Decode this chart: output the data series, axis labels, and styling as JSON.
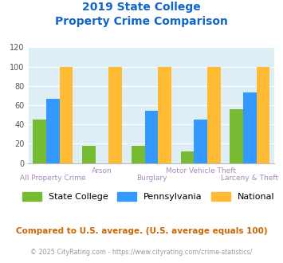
{
  "title_line1": "2019 State College",
  "title_line2": "Property Crime Comparison",
  "categories": [
    "All Property Crime",
    "Arson",
    "Burglary",
    "Motor Vehicle Theft",
    "Larceny & Theft"
  ],
  "state_college": [
    45,
    18,
    18,
    12,
    56
  ],
  "pennsylvania": [
    67,
    0,
    54,
    45,
    73
  ],
  "national": [
    100,
    100,
    100,
    100,
    100
  ],
  "color_sc": "#77bb33",
  "color_pa": "#3399ff",
  "color_nat": "#ffbb33",
  "ylim": [
    0,
    120
  ],
  "yticks": [
    0,
    20,
    40,
    60,
    80,
    100,
    120
  ],
  "xlabel_color": "#aa88bb",
  "title_color": "#1166cc",
  "bg_color": "#ddeef5",
  "grid_color": "#ffffff",
  "footnote1": "Compared to U.S. average. (U.S. average equals 100)",
  "footnote2": "© 2025 CityRating.com - https://www.cityrating.com/crime-statistics/",
  "footnote1_color": "#cc6600",
  "footnote2_color": "#999999",
  "legend_labels": [
    "State College",
    "Pennsylvania",
    "National"
  ]
}
